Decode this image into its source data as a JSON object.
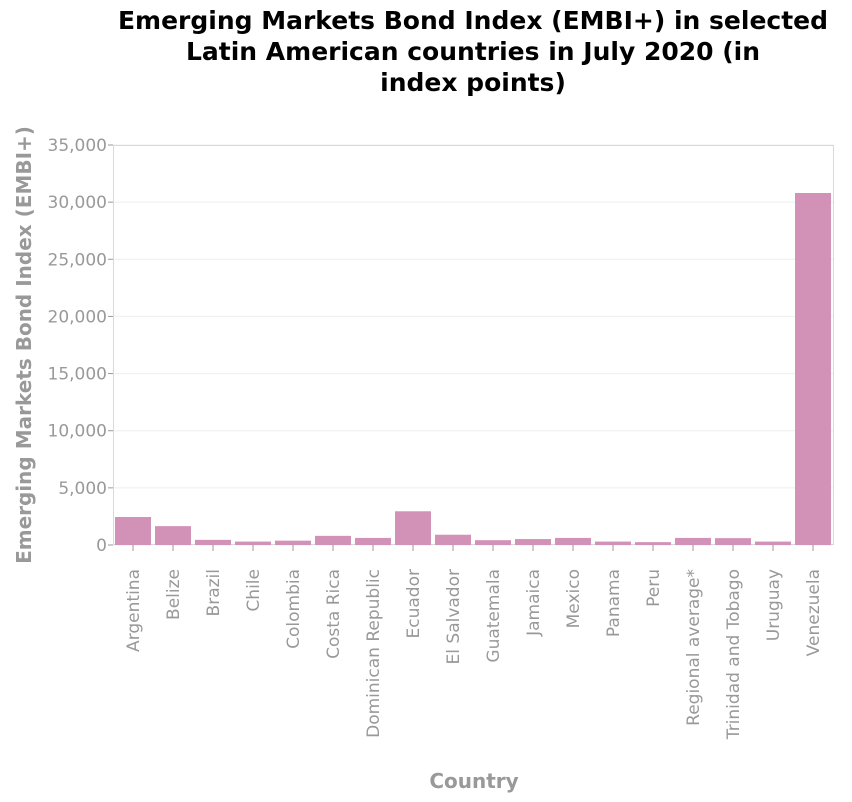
{
  "chart_data": {
    "type": "bar",
    "title_lines": [
      "Emerging Markets Bond Index (EMBI+) in selected",
      "Latin American countries in July 2020 (in",
      "index points)"
    ],
    "xlabel": "Country",
    "ylabel": "Emerging Markets Bond Index (EMBI+)",
    "ylim": [
      0,
      35000
    ],
    "yticks": [
      0,
      5000,
      10000,
      15000,
      20000,
      25000,
      30000,
      35000
    ],
    "ytick_labels": [
      "0",
      "5,000",
      "10,000",
      "15,000",
      "20,000",
      "25,000",
      "30,000",
      "35,000"
    ],
    "grid": true,
    "bar_color": "#d291b6",
    "categories": [
      "Argentina",
      "Belize",
      "Brazil",
      "Chile",
      "Colombia",
      "Costa Rica",
      "Dominican Republic",
      "Ecuador",
      "El Salvador",
      "Guatemala",
      "Jamaica",
      "Mexico",
      "Panama",
      "Peru",
      "Regional average*",
      "Trinidad and Tobago",
      "Uruguay",
      "Venezuela"
    ],
    "values": [
      2450,
      1650,
      450,
      300,
      380,
      800,
      620,
      2950,
      900,
      420,
      520,
      620,
      300,
      250,
      620,
      600,
      300,
      30800
    ]
  }
}
